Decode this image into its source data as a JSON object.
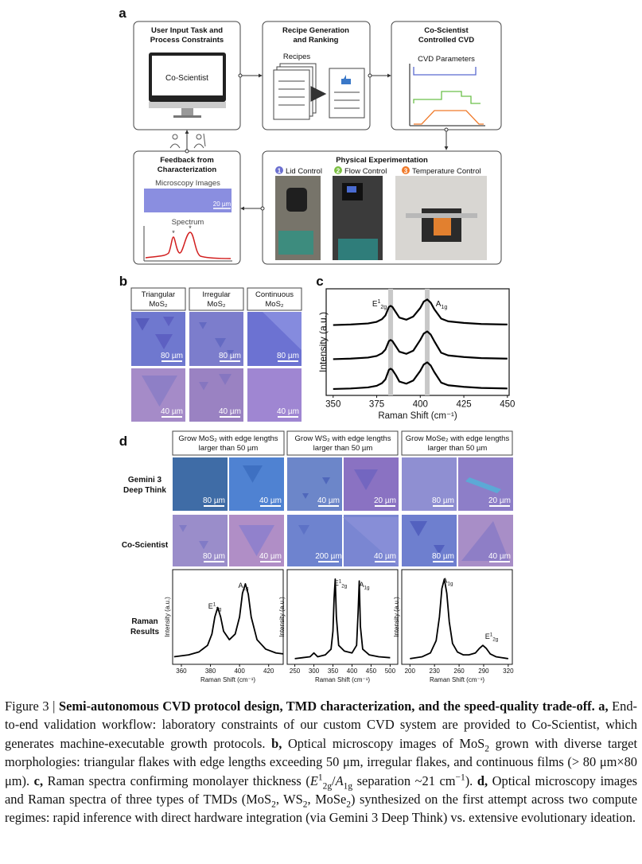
{
  "panel_a": {
    "label": "a",
    "input_box": {
      "title": [
        "User Input Task and",
        "Process Constraints"
      ],
      "screen": "Co-Scientist"
    },
    "recipe_box": {
      "title": [
        "Recipe Generation",
        "and Ranking"
      ],
      "recipes": "Recipes"
    },
    "cvd_box": {
      "title": [
        "Co-Scientist",
        "Controlled CVD"
      ],
      "parameters": "CVD Parameters"
    },
    "feedback_box": {
      "title": [
        "Feedback from",
        "Characterization"
      ],
      "microscopy": "Microscopy Images",
      "scale": "20 µm",
      "spectrum": "Spectrum"
    },
    "experiment_box": {
      "title": "Physical Experimentation",
      "steps": [
        {
          "number": "1",
          "label": "Lid Control",
          "color": "#6b6fd0"
        },
        {
          "number": "2",
          "label": "Flow Control",
          "color": "#7cc043"
        },
        {
          "number": "3",
          "label": "Temperature Control",
          "color": "#f07a2a"
        }
      ]
    }
  },
  "panel_b": {
    "label": "b",
    "columns": [
      {
        "title": [
          "Triangular",
          "MoS₂"
        ],
        "scales": [
          "80 µm",
          "40 µm"
        ]
      },
      {
        "title": [
          "Irregular",
          "MoS₂"
        ],
        "scales": [
          "80 µm",
          "40 µm"
        ]
      },
      {
        "title": [
          "Continuous",
          "MoS₂"
        ],
        "scales": [
          "80 µm",
          "40 µm"
        ]
      }
    ]
  },
  "panel_c": {
    "label": "c",
    "chart": {
      "type": "line",
      "xlabel": "Raman Shift (cm⁻¹)",
      "ylabel": "Intensity (a.u.)",
      "xlim": [
        346,
        451
      ],
      "ylim": [
        0,
        10
      ],
      "xticks": [
        350,
        375,
        400,
        425,
        450
      ],
      "highlights": [
        383,
        404
      ],
      "highlight_color": "#c8c8c8",
      "peak_labels": [
        [
          {
            "text": "E",
            "style": "normal"
          },
          {
            "text": "1",
            "style": "sup"
          },
          {
            "text": "2g",
            "style": "sub"
          }
        ],
        [
          {
            "text": "A",
            "style": "normal"
          },
          {
            "text": "1g",
            "style": "sub"
          }
        ]
      ],
      "x": [
        350,
        360,
        370,
        375,
        378,
        380,
        382,
        383,
        384,
        386,
        388,
        392,
        396,
        400,
        402,
        404,
        406,
        408,
        412,
        416,
        425,
        435,
        450
      ],
      "series": [
        {
          "color": "#000000",
          "values": [
            6.6,
            6.65,
            6.75,
            6.9,
            7.15,
            7.5,
            8.3,
            8.4,
            8.3,
            7.8,
            7.3,
            7.1,
            7.4,
            8.2,
            8.8,
            9.0,
            8.7,
            8.1,
            7.2,
            6.95,
            6.8,
            6.7,
            6.65
          ]
        },
        {
          "color": "#000000",
          "values": [
            3.4,
            3.45,
            3.55,
            3.7,
            3.95,
            4.3,
            5.1,
            5.2,
            5.1,
            4.6,
            4.1,
            3.9,
            4.2,
            5.2,
            5.8,
            6.0,
            5.7,
            5.1,
            4.0,
            3.75,
            3.6,
            3.5,
            3.45
          ]
        },
        {
          "color": "#000000",
          "values": [
            0.6,
            0.65,
            0.75,
            0.9,
            1.15,
            1.5,
            2.4,
            2.5,
            2.4,
            1.9,
            1.3,
            1.1,
            1.4,
            2.3,
            2.9,
            3.1,
            2.8,
            2.2,
            1.2,
            0.95,
            0.8,
            0.7,
            0.65
          ]
        }
      ]
    }
  },
  "panel_d": {
    "label": "d",
    "columns": [
      {
        "title": [
          "Grow MoS₂ with edge lengths",
          "larger than 50 µm"
        ]
      },
      {
        "title": [
          "Grow WS₂ with edge lengths",
          "larger than 50 µm"
        ]
      },
      {
        "title": [
          "Grow MoSe₂ with edge lengths",
          "larger than 50 µm"
        ]
      }
    ],
    "rows": [
      {
        "label": [
          "Gemini 3",
          "Deep Think"
        ],
        "scales": [
          "80 µm",
          "40 µm",
          "40 µm",
          "20 µm",
          "80 µm",
          "20 µm"
        ]
      },
      {
        "label": [
          "Co-Scientist"
        ],
        "scales": [
          "80 µm",
          "40 µm",
          "200 µm",
          "40 µm",
          "80 µm",
          "40 µm"
        ]
      },
      {
        "label": [
          "Raman",
          "Results"
        ]
      }
    ],
    "charts": [
      {
        "type": "line",
        "xlabel": "Raman Shift (cm⁻¹)",
        "ylabel": "Intensity (a.u.)",
        "xlim": [
          354,
          430
        ],
        "ylim": [
          0,
          10
        ],
        "xticks": [
          360,
          380,
          400,
          420
        ],
        "peak_labels": [
          [
            {
              "text": "E",
              "style": "normal"
            },
            {
              "text": "1",
              "style": "sup"
            },
            {
              "text": "2g",
              "style": "sub"
            }
          ],
          [
            {
              "text": "A",
              "style": "normal"
            },
            {
              "text": "1g",
              "style": "sub"
            }
          ]
        ],
        "x": [
          355,
          365,
          372,
          378,
          381,
          383,
          385,
          387,
          389,
          393,
          397,
          400,
          402,
          404,
          406,
          408,
          412,
          418,
          425,
          430
        ],
        "series": [
          {
            "color": "#000000",
            "values": [
              0.8,
              1.0,
              1.3,
              2.0,
              3.2,
              5.0,
              6.0,
              5.0,
              3.5,
              2.6,
              3.2,
              5.0,
              7.5,
              8.5,
              7.4,
              5.0,
              2.6,
              1.6,
              1.2,
              1.1
            ]
          }
        ]
      },
      {
        "type": "line",
        "xlabel": "Raman Shift (cm⁻¹)",
        "ylabel": "Intensity (a.u.)",
        "xlim": [
          230,
          520
        ],
        "ylim": [
          0,
          10
        ],
        "xticks": [
          250,
          300,
          350,
          400,
          450,
          500
        ],
        "peak_labels": [
          [
            {
              "text": "E",
              "style": "normal"
            },
            {
              "text": "1",
              "style": "sup"
            },
            {
              "text": "2g",
              "style": "sub"
            }
          ],
          [
            {
              "text": "A",
              "style": "normal"
            },
            {
              "text": "1g",
              "style": "sub"
            }
          ]
        ],
        "x": [
          250,
          270,
          290,
          300,
          310,
          330,
          345,
          350,
          353,
          356,
          359,
          365,
          380,
          400,
          412,
          416,
          419,
          422,
          428,
          445,
          470,
          500
        ],
        "series": [
          {
            "color": "#000000",
            "values": [
              0.6,
              0.7,
              0.8,
              1.2,
              0.8,
              1.0,
              1.6,
              3.5,
              7.0,
              9.0,
              5.0,
              2.0,
              1.4,
              1.2,
              2.0,
              5.5,
              8.8,
              4.0,
              1.6,
              1.0,
              0.8,
              0.7
            ]
          }
        ]
      },
      {
        "type": "line",
        "xlabel": "Raman Shift (cm⁻¹)",
        "ylabel": "Intensity (a.u.)",
        "xlim": [
          190,
          325
        ],
        "ylim": [
          0,
          10
        ],
        "xticks": [
          200,
          230,
          260,
          290,
          320
        ],
        "peak_labels": [
          [
            {
              "text": "A",
              "style": "normal"
            },
            {
              "text": "1g",
              "style": "sub"
            }
          ],
          [
            {
              "text": "E",
              "style": "normal"
            },
            {
              "text": "1",
              "style": "sup"
            },
            {
              "text": "2g",
              "style": "sub"
            }
          ]
        ],
        "x": [
          200,
          215,
          225,
          232,
          236,
          239,
          242,
          245,
          248,
          252,
          258,
          265,
          272,
          280,
          285,
          289,
          293,
          298,
          305,
          312,
          320
        ],
        "series": [
          {
            "color": "#000000",
            "values": [
              0.6,
              0.8,
              1.2,
              2.5,
              5.0,
              8.0,
              9.0,
              7.5,
              4.5,
              2.2,
              1.3,
              1.0,
              1.0,
              1.2,
              1.7,
              2.0,
              1.7,
              1.1,
              0.8,
              0.7,
              0.6
            ]
          }
        ]
      }
    ]
  },
  "caption": {
    "runs": [
      {
        "text": "Figure 3 | ",
        "style": "normal"
      },
      {
        "text": "Semi-autonomous CVD protocol design, TMD characterization, and the speed-quality trade-off.",
        "style": "bold"
      },
      {
        "text": " a,",
        "style": "bold"
      },
      {
        "text": " End-to-end validation workflow: laboratory constraints of our custom CVD system are provided to Co-Scientist, which generates machine-executable growth protocols.",
        "style": "normal"
      },
      {
        "text": " b,",
        "style": "bold"
      },
      {
        "text": " Optical microscopy images of MoS",
        "style": "normal"
      },
      {
        "text": "2",
        "style": "sub"
      },
      {
        "text": " grown with diverse target morphologies: triangular flakes with edge lengths exceeding 50 μm, irregular flakes, and continuous films (> 80 μm×80 μm).",
        "style": "normal"
      },
      {
        "text": " c,",
        "style": "bold"
      },
      {
        "text": " Raman spectra confirming monolayer thickness (",
        "style": "normal"
      },
      {
        "text": "E",
        "style": "italic"
      },
      {
        "text": "1",
        "style": "sup"
      },
      {
        "text": "2g",
        "style": "sub"
      },
      {
        "text": "/",
        "style": "normal"
      },
      {
        "text": "A",
        "style": "italic"
      },
      {
        "text": "1g",
        "style": "sub"
      },
      {
        "text": " separation ~21 cm",
        "style": "normal"
      },
      {
        "text": "−1",
        "style": "sup"
      },
      {
        "text": ").",
        "style": "normal"
      },
      {
        "text": " d,",
        "style": "bold"
      },
      {
        "text": " Optical microscopy images and Raman spectra of three types of TMDs (MoS",
        "style": "normal"
      },
      {
        "text": "2",
        "style": "sub"
      },
      {
        "text": ", WS",
        "style": "normal"
      },
      {
        "text": "2",
        "style": "sub"
      },
      {
        "text": ", MoSe",
        "style": "normal"
      },
      {
        "text": "2",
        "style": "sub"
      },
      {
        "text": ") synthesized on the first attempt across two compute regimes: rapid inference with direct hardware integration (via Gemini 3 Deep Think) vs. extensive evolutionary ideation.",
        "style": "normal"
      }
    ]
  }
}
